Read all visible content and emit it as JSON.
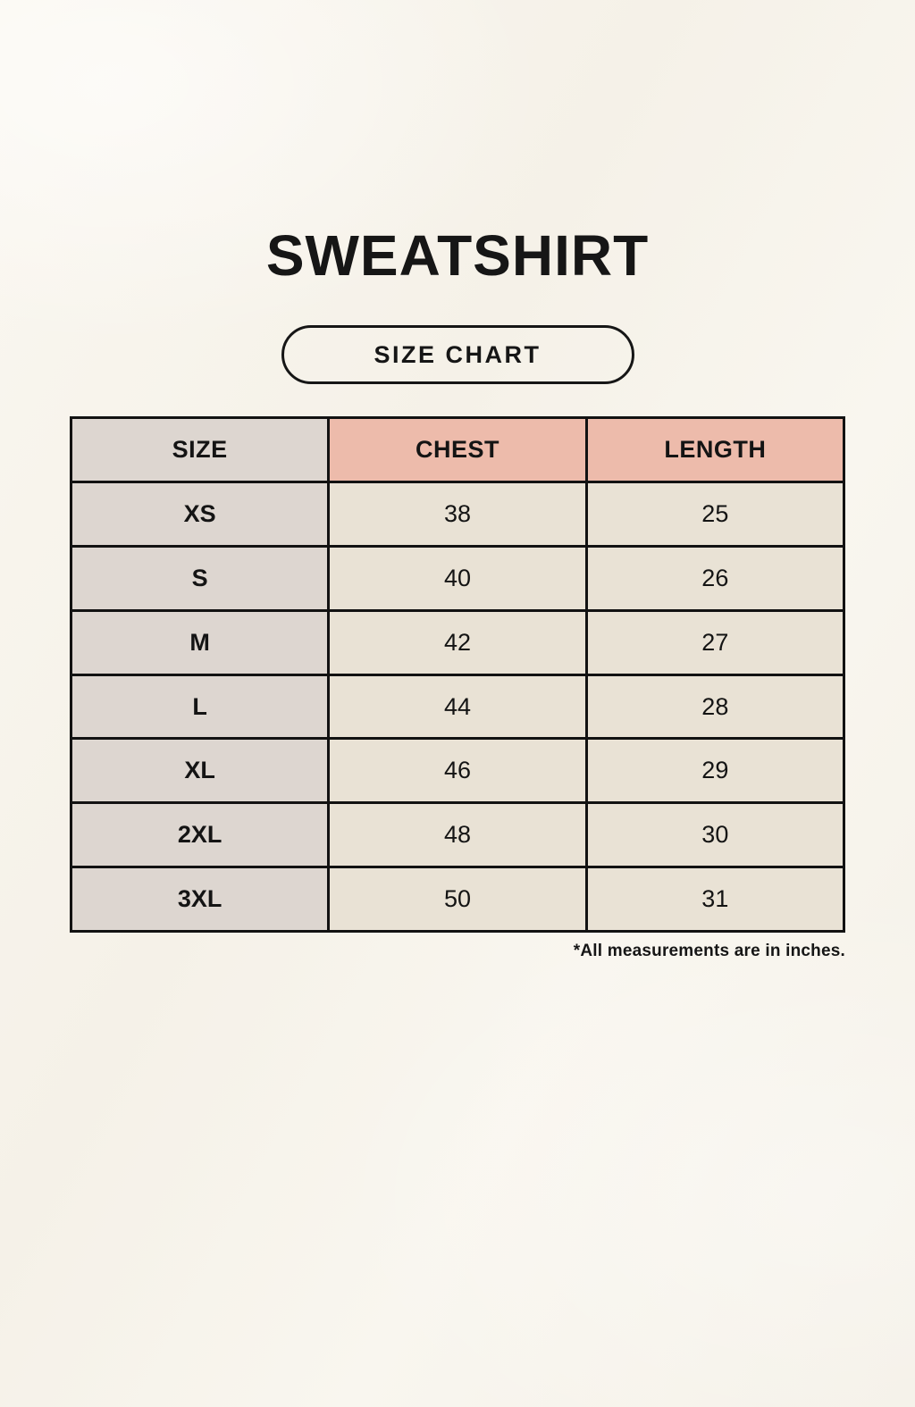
{
  "page": {
    "title": "SWEATSHIRT",
    "badge_label": "SIZE CHART",
    "footnote": "*All measurements are in inches."
  },
  "chart_data": {
    "type": "table",
    "title": "SWEATSHIRT SIZE CHART",
    "columns": [
      "SIZE",
      "CHEST",
      "LENGTH"
    ],
    "rows": [
      [
        "XS",
        "38",
        "25"
      ],
      [
        "S",
        "40",
        "26"
      ],
      [
        "M",
        "42",
        "27"
      ],
      [
        "L",
        "44",
        "28"
      ],
      [
        "XL",
        "46",
        "29"
      ],
      [
        "2XL",
        "48",
        "30"
      ],
      [
        "3XL",
        "50",
        "31"
      ]
    ],
    "units_note": "*All measurements are in inches."
  },
  "colors": {
    "background": "#f6f2e9",
    "header_accent": "#edbbab",
    "size_column": "#ddd6d0",
    "data_cell": "#e9e2d5",
    "border": "#121212",
    "text": "#161616"
  }
}
